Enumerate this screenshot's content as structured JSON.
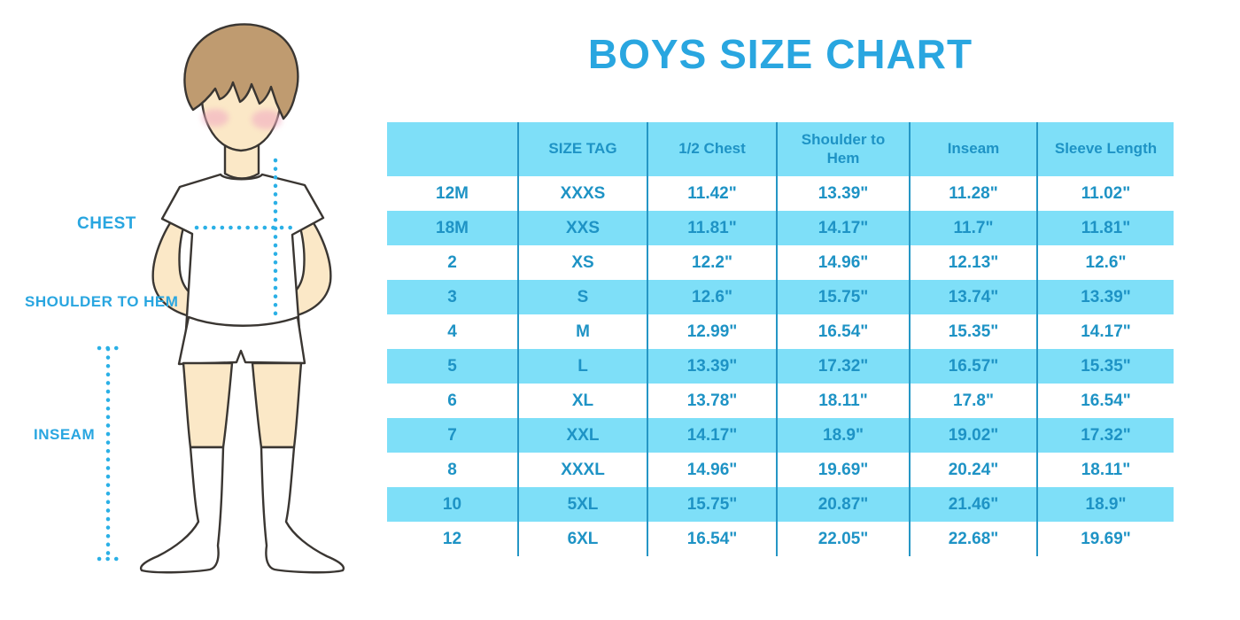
{
  "title": "BOYS SIZE CHART",
  "figure": {
    "chest_label": "CHEST",
    "shoulder_to_hem_label": "SHOULDER TO HEM",
    "inseam_label": "INSEAM"
  },
  "table": {
    "headers": [
      "",
      "SIZE TAG",
      "1/2 Chest",
      "Shoulder to Hem",
      "Inseam",
      "Sleeve Length"
    ],
    "rows": [
      [
        "12M",
        "XXXS",
        "11.42\"",
        "13.39\"",
        "11.28\"",
        "11.02\""
      ],
      [
        "18M",
        "XXS",
        "11.81\"",
        "14.17\"",
        "11.7\"",
        "11.81\""
      ],
      [
        "2",
        "XS",
        "12.2\"",
        "14.96\"",
        "12.13\"",
        "12.6\""
      ],
      [
        "3",
        "S",
        "12.6\"",
        "15.75\"",
        "13.74\"",
        "13.39\""
      ],
      [
        "4",
        "M",
        "12.99\"",
        "16.54\"",
        "15.35\"",
        "14.17\""
      ],
      [
        "5",
        "L",
        "13.39\"",
        "17.32\"",
        "16.57\"",
        "15.35\""
      ],
      [
        "6",
        "XL",
        "13.78\"",
        "18.11\"",
        "17.8\"",
        "16.54\""
      ],
      [
        "7",
        "XXL",
        "14.17\"",
        "18.9\"",
        "19.02\"",
        "17.32\""
      ],
      [
        "8",
        "XXXL",
        "14.96\"",
        "19.69\"",
        "20.24\"",
        "18.11\""
      ],
      [
        "10",
        "5XL",
        "15.75\"",
        "20.87\"",
        "21.46\"",
        "18.9\""
      ],
      [
        "12",
        "6XL",
        "16.54\"",
        "22.05\"",
        "22.68\"",
        "19.69\""
      ]
    ]
  },
  "colors": {
    "accent_blue": "#29A6E0",
    "table_text_blue": "#1E93C5",
    "row_stripe_blue": "#7EDFF8",
    "column_divider_blue": "#2596C5",
    "skin": "#FBE8C7",
    "hair_brown": "#BF9B70"
  }
}
